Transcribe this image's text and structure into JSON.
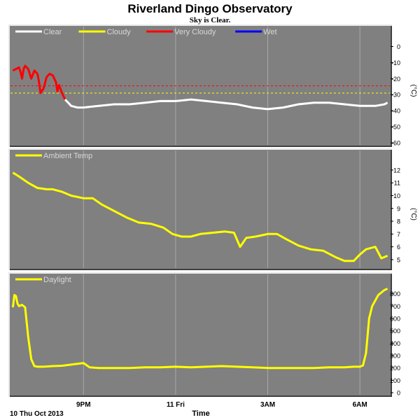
{
  "header": {
    "title": "Riverland Dingo Observatory",
    "subtitle": "Sky is Clear."
  },
  "colors": {
    "panel_bg": "#808080",
    "grid": "#a8a8a8",
    "clear": "#ffffff",
    "cloudy": "#ffff00",
    "very_cloudy": "#ff0000",
    "wet": "#0000ff",
    "ambient": "#ffff00",
    "daylight": "#ffff00"
  },
  "x_axis": {
    "label": "Time",
    "date_label": "10 Thu Oct 2013",
    "ticks": [
      {
        "label": "9PM",
        "t": 21
      },
      {
        "label": "11 Fri",
        "t": 24
      },
      {
        "label": "3AM",
        "t": 27
      },
      {
        "label": "6AM",
        "t": 30
      }
    ],
    "range": [
      18.6,
      31.0
    ]
  },
  "chart_data": [
    {
      "type": "line",
      "name": "sky",
      "unit": "(°C)",
      "ylim": [
        -60,
        5
      ],
      "yticks": [
        0,
        -10,
        -20,
        -30,
        -40,
        -50,
        -60
      ],
      "legend": [
        {
          "label": "Clear",
          "color": "#ffffff"
        },
        {
          "label": "Cloudy",
          "color": "#ffff00"
        },
        {
          "label": "Very Cloudy",
          "color": "#ff0000"
        },
        {
          "label": "Wet",
          "color": "#0000ff"
        }
      ],
      "thresholds": [
        {
          "value": -24.5,
          "color": "#ff0000"
        },
        {
          "value": -29,
          "color": "#ffff00"
        }
      ],
      "series": [
        {
          "color": "#ff0000",
          "x": [
            18.7,
            18.8,
            18.9,
            18.95,
            19.0,
            19.05,
            19.1,
            19.2,
            19.3,
            19.4,
            19.5,
            19.55,
            19.6,
            19.7,
            19.8,
            19.9,
            20.0,
            20.1,
            20.15,
            20.2,
            20.3,
            20.4
          ],
          "y": [
            -15,
            -14,
            -13,
            -16,
            -20,
            -14,
            -12,
            -14,
            -20,
            -15,
            -17,
            -22,
            -29,
            -26,
            -19,
            -17,
            -18,
            -22,
            -28,
            -24,
            -29,
            -33
          ]
        },
        {
          "color": "#ffffff",
          "x": [
            20.4,
            20.5,
            20.6,
            20.8,
            21.0,
            21.5,
            22.0,
            22.5,
            23.0,
            23.5,
            24.0,
            24.5,
            25.0,
            25.5,
            26.0,
            26.5,
            27.0,
            27.5,
            28.0,
            28.5,
            29.0,
            29.5,
            30.0,
            30.5,
            30.8,
            30.9
          ],
          "y": [
            -33,
            -35,
            -37,
            -38,
            -38,
            -37,
            -36,
            -36,
            -35,
            -34,
            -34,
            -33,
            -34,
            -35,
            -36,
            -38,
            -39,
            -38,
            -36,
            -35,
            -35,
            -36,
            -37,
            -37,
            -36,
            -35
          ]
        }
      ]
    },
    {
      "type": "line",
      "name": "ambient",
      "unit": "(°C)",
      "ylim": [
        4.5,
        12.6
      ],
      "yticks": [
        5,
        6,
        7,
        8,
        9,
        10,
        11,
        12
      ],
      "legend": [
        {
          "label": "Ambient Temp",
          "color": "#ffff00"
        }
      ],
      "series": [
        {
          "color": "#ffff00",
          "x": [
            18.7,
            18.9,
            19.2,
            19.5,
            19.8,
            20.0,
            20.3,
            20.6,
            21.0,
            21.3,
            21.6,
            22.0,
            22.4,
            22.8,
            23.2,
            23.6,
            23.9,
            24.2,
            24.5,
            24.8,
            25.2,
            25.6,
            25.9,
            26.1,
            26.3,
            26.6,
            27.0,
            27.3,
            27.6,
            28.0,
            28.4,
            28.8,
            29.2,
            29.5,
            29.8,
            30.0,
            30.2,
            30.5,
            30.7,
            30.9
          ],
          "y": [
            11.8,
            11.5,
            11.0,
            10.6,
            10.5,
            10.5,
            10.3,
            10.0,
            9.8,
            9.8,
            9.3,
            8.8,
            8.3,
            7.9,
            7.8,
            7.5,
            7.0,
            6.8,
            6.8,
            7.0,
            7.1,
            7.2,
            7.1,
            6.0,
            6.7,
            6.8,
            7.0,
            7.0,
            6.6,
            6.1,
            5.8,
            5.7,
            5.2,
            4.9,
            4.9,
            5.4,
            5.8,
            6.0,
            5.1,
            5.3
          ]
        }
      ]
    },
    {
      "type": "line",
      "name": "daylight",
      "unit": "",
      "ylim": [
        0,
        860
      ],
      "yticks": [
        0,
        100,
        200,
        300,
        400,
        500,
        600,
        700,
        800
      ],
      "legend": [
        {
          "label": "Daylight",
          "color": "#ffff00"
        }
      ],
      "series": [
        {
          "color": "#ffff00",
          "x": [
            18.7,
            18.75,
            18.8,
            18.85,
            18.9,
            19.0,
            19.1,
            19.2,
            19.3,
            19.4,
            19.5,
            19.7,
            20.0,
            20.3,
            21.0,
            21.2,
            21.5,
            22.0,
            22.5,
            23.0,
            23.5,
            24.0,
            24.5,
            25.0,
            25.5,
            26.0,
            26.5,
            27.0,
            27.5,
            28.0,
            28.5,
            29.0,
            29.5,
            29.8,
            30.0,
            30.1,
            30.2,
            30.3,
            30.4,
            30.6,
            30.8,
            30.9
          ],
          "y": [
            690,
            790,
            780,
            720,
            700,
            710,
            690,
            450,
            270,
            215,
            210,
            210,
            215,
            218,
            240,
            205,
            200,
            200,
            200,
            205,
            205,
            210,
            205,
            210,
            215,
            210,
            205,
            200,
            200,
            200,
            200,
            205,
            205,
            210,
            210,
            220,
            320,
            600,
            700,
            790,
            830,
            840
          ]
        }
      ]
    }
  ]
}
